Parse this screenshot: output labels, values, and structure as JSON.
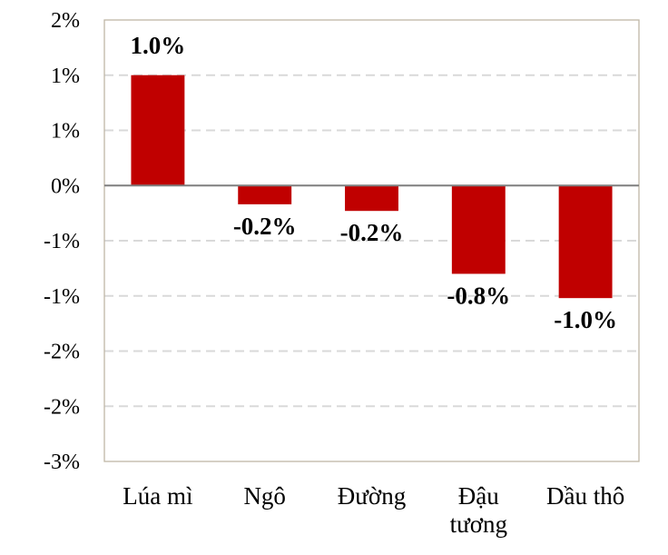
{
  "chart_data": {
    "type": "bar",
    "categories": [
      [
        "Lúa mì"
      ],
      [
        "Ngô"
      ],
      [
        "Đường"
      ],
      [
        "Đậu",
        "tương"
      ],
      [
        "Dầu thô"
      ]
    ],
    "values": [
      1.0,
      -0.17,
      -0.23,
      -0.8,
      -1.02
    ],
    "data_labels": [
      "1.0%",
      "-0.2%",
      "-0.2%",
      "-0.8%",
      "-1.0%"
    ],
    "ylim": [
      -2.5,
      1.5
    ],
    "y_ticks": [
      1.5,
      1.0,
      0.5,
      0.0,
      -0.5,
      -1.0,
      -1.5,
      -2.0,
      -2.5
    ],
    "y_tick_labels": [
      "2%",
      "1%",
      "1%",
      "0%",
      "-1%",
      "-1%",
      "-2%",
      "-2%",
      "-3%"
    ],
    "title": "",
    "xlabel": "",
    "ylabel": "",
    "grid": "horizontal dashed",
    "colors": {
      "bar": "#c00000",
      "grid": "#d9d9d9",
      "frame": "#bfb7a6",
      "zero_line": "#7f7f7f"
    }
  }
}
